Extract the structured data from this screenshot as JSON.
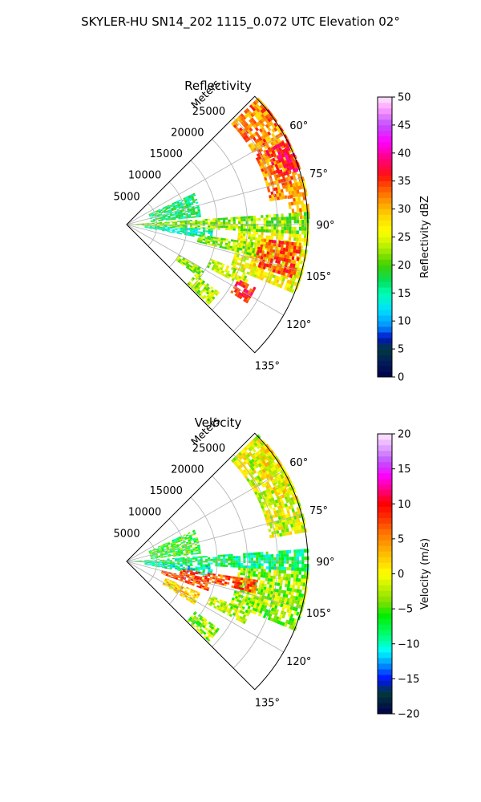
{
  "figure": {
    "suptitle": "SKYLER-HU  SN14_202  1115_0.072 UTC Elevation 02°"
  },
  "chart_data": [
    {
      "type": "heatmap",
      "subtype": "polar-sector",
      "title": "Reflectivity",
      "range_axis_label": "Meters",
      "range_ticks": [
        5000,
        10000,
        15000,
        20000,
        25000
      ],
      "range_tick_labels": [
        "5000",
        "10000",
        "15000",
        "20000",
        "25000"
      ],
      "azimuth_ticks": [
        60,
        75,
        90,
        105,
        120,
        135
      ],
      "azimuth_tick_labels": [
        "60°",
        "75°",
        "90°",
        "105°",
        "120°",
        "135°"
      ],
      "azimuth_range": [
        45,
        135
      ],
      "range_max": 30000,
      "grid": true,
      "colorbar": {
        "label": "Reflectivity dBZ",
        "range": [
          0,
          50
        ],
        "ticks": [
          0,
          5,
          10,
          15,
          20,
          25,
          30,
          35,
          40,
          45,
          50
        ],
        "tick_labels": [
          "0",
          "5",
          "10",
          "15",
          "20",
          "25",
          "30",
          "35",
          "40",
          "45",
          "50"
        ]
      },
      "echo_regions": [
        {
          "az": [
            46,
            80
          ],
          "r": [
            24000,
            30000
          ],
          "value": 32
        },
        {
          "az": [
            62,
            72
          ],
          "r": [
            26000,
            30000
          ],
          "value": 37
        },
        {
          "az": [
            75,
            88
          ],
          "r": [
            27000,
            30000
          ],
          "value": 30
        },
        {
          "az": [
            92,
            112
          ],
          "r": [
            18500,
            30000
          ],
          "value": 26
        },
        {
          "az": [
            96,
            108
          ],
          "r": [
            22000,
            29000
          ],
          "value": 34
        },
        {
          "az": [
            65,
            84
          ],
          "r": [
            4000,
            12000
          ],
          "value": 17
        },
        {
          "az": [
            86,
            93
          ],
          "r": [
            0,
            30000
          ],
          "value": 22
        },
        {
          "az": [
            93,
            100
          ],
          "r": [
            3000,
            14000
          ],
          "value": 15
        },
        {
          "az": [
            98,
            104
          ],
          "r": [
            12000,
            22000
          ],
          "value": 22
        },
        {
          "az": [
            112,
            118
          ],
          "r": [
            15000,
            22000
          ],
          "value": 24
        },
        {
          "az": [
            116,
            123
          ],
          "r": [
            20500,
            23500
          ],
          "value": 36
        },
        {
          "az": [
            126,
            134
          ],
          "r": [
            14000,
            19000
          ],
          "value": 23
        },
        {
          "az": [
            120,
            126
          ],
          "r": [
            10000,
            15000
          ],
          "value": 22
        }
      ]
    },
    {
      "type": "heatmap",
      "subtype": "polar-sector",
      "title": "Velocity",
      "range_axis_label": "Meters",
      "range_ticks": [
        5000,
        10000,
        15000,
        20000,
        25000
      ],
      "range_tick_labels": [
        "5000",
        "10000",
        "15000",
        "20000",
        "25000"
      ],
      "azimuth_ticks": [
        60,
        75,
        90,
        105,
        120,
        135
      ],
      "azimuth_tick_labels": [
        "60°",
        "75°",
        "90°",
        "105°",
        "120°",
        "135°"
      ],
      "azimuth_range": [
        45,
        135
      ],
      "range_max": 30000,
      "grid": true,
      "colorbar": {
        "label": "Velocity (m/s)",
        "range": [
          -20,
          20
        ],
        "ticks": [
          -20,
          -15,
          -10,
          -5,
          0,
          5,
          10,
          15,
          20
        ],
        "tick_labels": [
          "−20",
          "−15",
          "−10",
          "−5",
          "0",
          "5",
          "10",
          "15",
          "20"
        ]
      },
      "echo_regions": [
        {
          "az": [
            46,
            80
          ],
          "r": [
            24000,
            30000
          ],
          "value": -1
        },
        {
          "az": [
            50,
            68
          ],
          "r": [
            27000,
            30000
          ],
          "value": 0
        },
        {
          "az": [
            92,
            112
          ],
          "r": [
            18500,
            30000
          ],
          "value": -3
        },
        {
          "az": [
            65,
            84
          ],
          "r": [
            4000,
            12000
          ],
          "value": -6
        },
        {
          "az": [
            86,
            93
          ],
          "r": [
            0,
            30000
          ],
          "value": -8
        },
        {
          "az": [
            93,
            100
          ],
          "r": [
            3000,
            14000
          ],
          "value": -10
        },
        {
          "az": [
            98,
            104
          ],
          "r": [
            9000,
            22000
          ],
          "value": 7
        },
        {
          "az": [
            104,
            110
          ],
          "r": [
            6000,
            14000
          ],
          "value": 7
        },
        {
          "az": [
            112,
            118
          ],
          "r": [
            15000,
            22000
          ],
          "value": -2
        },
        {
          "az": [
            113,
            122
          ],
          "r": [
            7000,
            13000
          ],
          "value": 2
        },
        {
          "az": [
            126,
            134
          ],
          "r": [
            14000,
            19000
          ],
          "value": -3
        }
      ]
    }
  ]
}
